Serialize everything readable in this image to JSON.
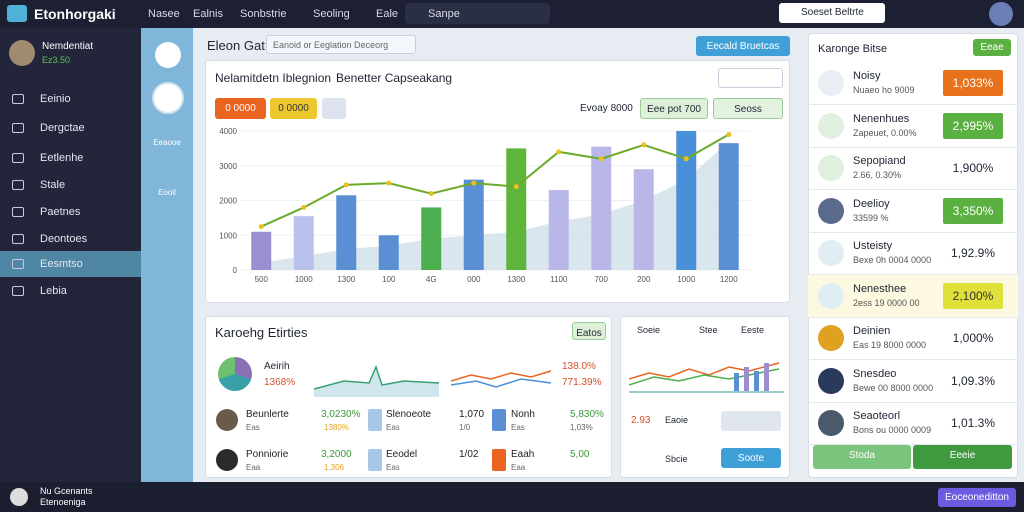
{
  "app": {
    "logo": "Etonhorgaki"
  },
  "topnav": [
    "Nasee",
    "Ealnis",
    "Sonbstrie",
    "Seoling",
    "Eale",
    "Sanpe"
  ],
  "account": "Soeset Beltrte",
  "user": {
    "name": "Nemdentiat",
    "status": "Ez3.50"
  },
  "sidebar": [
    "Eeinio",
    "Dergctae",
    "Eetlenhe",
    "Stale",
    "Paetnes",
    "Deontoes",
    "Eesmtso",
    "Lebia"
  ],
  "strip": [
    "Eeaooe",
    "Eooil"
  ],
  "footer_user": {
    "name": "Nu Gcenants",
    "sub": "Etenoeniga"
  },
  "taskbar_button": "Eoceoneditton",
  "header": {
    "title": "Eleon Gat",
    "search": "Eanoid or Eeglation Deceorg",
    "action": "Eecald Bruetcas"
  },
  "chart_data": {
    "type": "bar",
    "title": "Nelamitdetn Iblegnion",
    "subtitle": "Benetter Capseakang",
    "filters": [
      "0 0000",
      "0 0000"
    ],
    "range_label": "Evoay 8000",
    "buttons": [
      "Eee pot 700",
      "Seoss"
    ],
    "categories": [
      "500",
      "1000",
      "1300",
      "100",
      "4G",
      "000",
      "1300",
      "1100",
      "700",
      "200",
      "1000",
      "1200"
    ],
    "ylim": [
      0,
      4000
    ],
    "yticks": [
      0,
      1000,
      2000,
      3000,
      4000
    ],
    "series": [
      {
        "values": [
          1100,
          1550,
          2150,
          1000,
          1800,
          2600,
          3500,
          2300,
          3550,
          2900,
          4000,
          3650
        ],
        "colors": [
          "#9b8fd0",
          "#b8c2ec",
          "#5b8fd4",
          "#5b8fd4",
          "#4cae4c",
          "#5b8fd4",
          "#5fb53b",
          "#b9b7e8",
          "#b9b7e8",
          "#b9b7e8",
          "#4a90d9",
          "#5b8fd4"
        ]
      },
      {
        "type": "line",
        "color": "#6aab2a",
        "marker_color": "#e8c020",
        "values": [
          1250,
          1800,
          2450,
          2500,
          2200,
          2500,
          2400,
          3400,
          3200,
          3600,
          3200,
          3900
        ]
      },
      {
        "type": "area",
        "color": "#c9dbe6",
        "values": [
          200,
          400,
          600,
          700,
          900,
          1000,
          1100,
          1400,
          1600,
          2000,
          2600,
          3700
        ]
      }
    ]
  },
  "right_panel": {
    "title": "Karonge Bitse",
    "badge": "Eeae",
    "items": [
      {
        "title": "Noisy",
        "sub": "Nuaeo ho 9009",
        "value": "1,033%",
        "tone": "#e8711c"
      },
      {
        "title": "Nenenhues",
        "sub": "Zapeuet, 0.00%",
        "value": "2,995%",
        "tone": "#5bb042"
      },
      {
        "title": "Sepopiand",
        "sub": "2.66, 0.30%",
        "value": "1,900%",
        "tone": "none"
      },
      {
        "title": "Deelioy",
        "sub": "33599 %",
        "value": "3,350%",
        "tone": "#5bb042"
      },
      {
        "title": "Usteisty",
        "sub": "Bexe 0h 0004 0000",
        "value": "1,92.9%",
        "tone": "none"
      },
      {
        "title": "Nenesthee",
        "sub": "2ess 19 0000 00",
        "value": "2,100%",
        "tone": "#dfe03a"
      },
      {
        "title": "Deinien",
        "sub": "Eas 19 8000 0000",
        "value": "1,000%",
        "tone": "none"
      },
      {
        "title": "Snesdeo",
        "sub": "Bewe 00 8000 0000",
        "value": "1,09.3%",
        "tone": "none"
      },
      {
        "title": "Seaoteorl",
        "sub": "Bons ou 0000 0009",
        "value": "1,01.3%",
        "tone": "none"
      }
    ],
    "buttons": [
      "Stoda",
      "Eeeie"
    ]
  },
  "bottom_left": {
    "title": "Karoehg Etirties",
    "badge": "Eatos",
    "head": {
      "name": "Aeirih",
      "value": "1368%",
      "right_top": "138.0%",
      "right_bottom": "771.39%"
    },
    "rows": [
      [
        "Beunlerte",
        "Eas",
        "3,0230%",
        "1380%",
        "Slenoeote",
        "Eas",
        "1,070",
        "1/0",
        "Nonh",
        "Eas",
        "5,830%",
        "1,03%"
      ],
      [
        "Ponniorie",
        "Eaa",
        "3,2000",
        "1,306",
        "Eeodel",
        "Eas",
        "1/02",
        "",
        "Eaah",
        "Eaa",
        "5,00",
        ""
      ]
    ]
  },
  "bottom_mid": {
    "tabs": [
      "Soeie",
      "Stee",
      "Eeste"
    ],
    "value": "2.93",
    "label": "Eaoie",
    "row_label": "Sbcie",
    "button": "Soote"
  }
}
